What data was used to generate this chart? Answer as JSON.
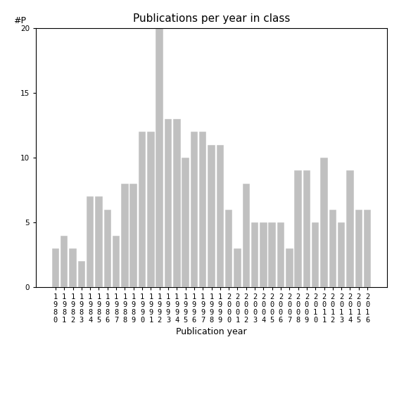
{
  "title": "Publications per year in class",
  "xlabel": "Publication year",
  "ylabel": "#P",
  "years": [
    "1980",
    "1981",
    "1982",
    "1983",
    "1984",
    "1985",
    "1986",
    "1987",
    "1988",
    "1989",
    "1990",
    "1991",
    "1992",
    "1993",
    "1994",
    "1995",
    "1996",
    "1997",
    "1998",
    "1999",
    "2000",
    "2001",
    "2002",
    "2003",
    "2004",
    "2005",
    "2006",
    "2007",
    "2008",
    "2009",
    "2010",
    "2011",
    "2012",
    "2013",
    "2014",
    "2015",
    "2016"
  ],
  "values": [
    3,
    4,
    3,
    2,
    7,
    7,
    6,
    4,
    8,
    8,
    12,
    12,
    20,
    13,
    13,
    10,
    12,
    12,
    11,
    11,
    6,
    3,
    8,
    5,
    5,
    5,
    5,
    3,
    9,
    9,
    5,
    10,
    6,
    5,
    9,
    6,
    6
  ],
  "bar_color": "#c0c0c0",
  "bar_edge_color": "#ffffff",
  "ylim": [
    0,
    20
  ],
  "yticks": [
    0,
    5,
    10,
    15,
    20
  ],
  "ytick_labels": [
    "0",
    "5",
    "10",
    "15",
    "20"
  ],
  "background_color": "#ffffff",
  "title_fontsize": 11,
  "label_fontsize": 9,
  "tick_fontsize": 7.5
}
